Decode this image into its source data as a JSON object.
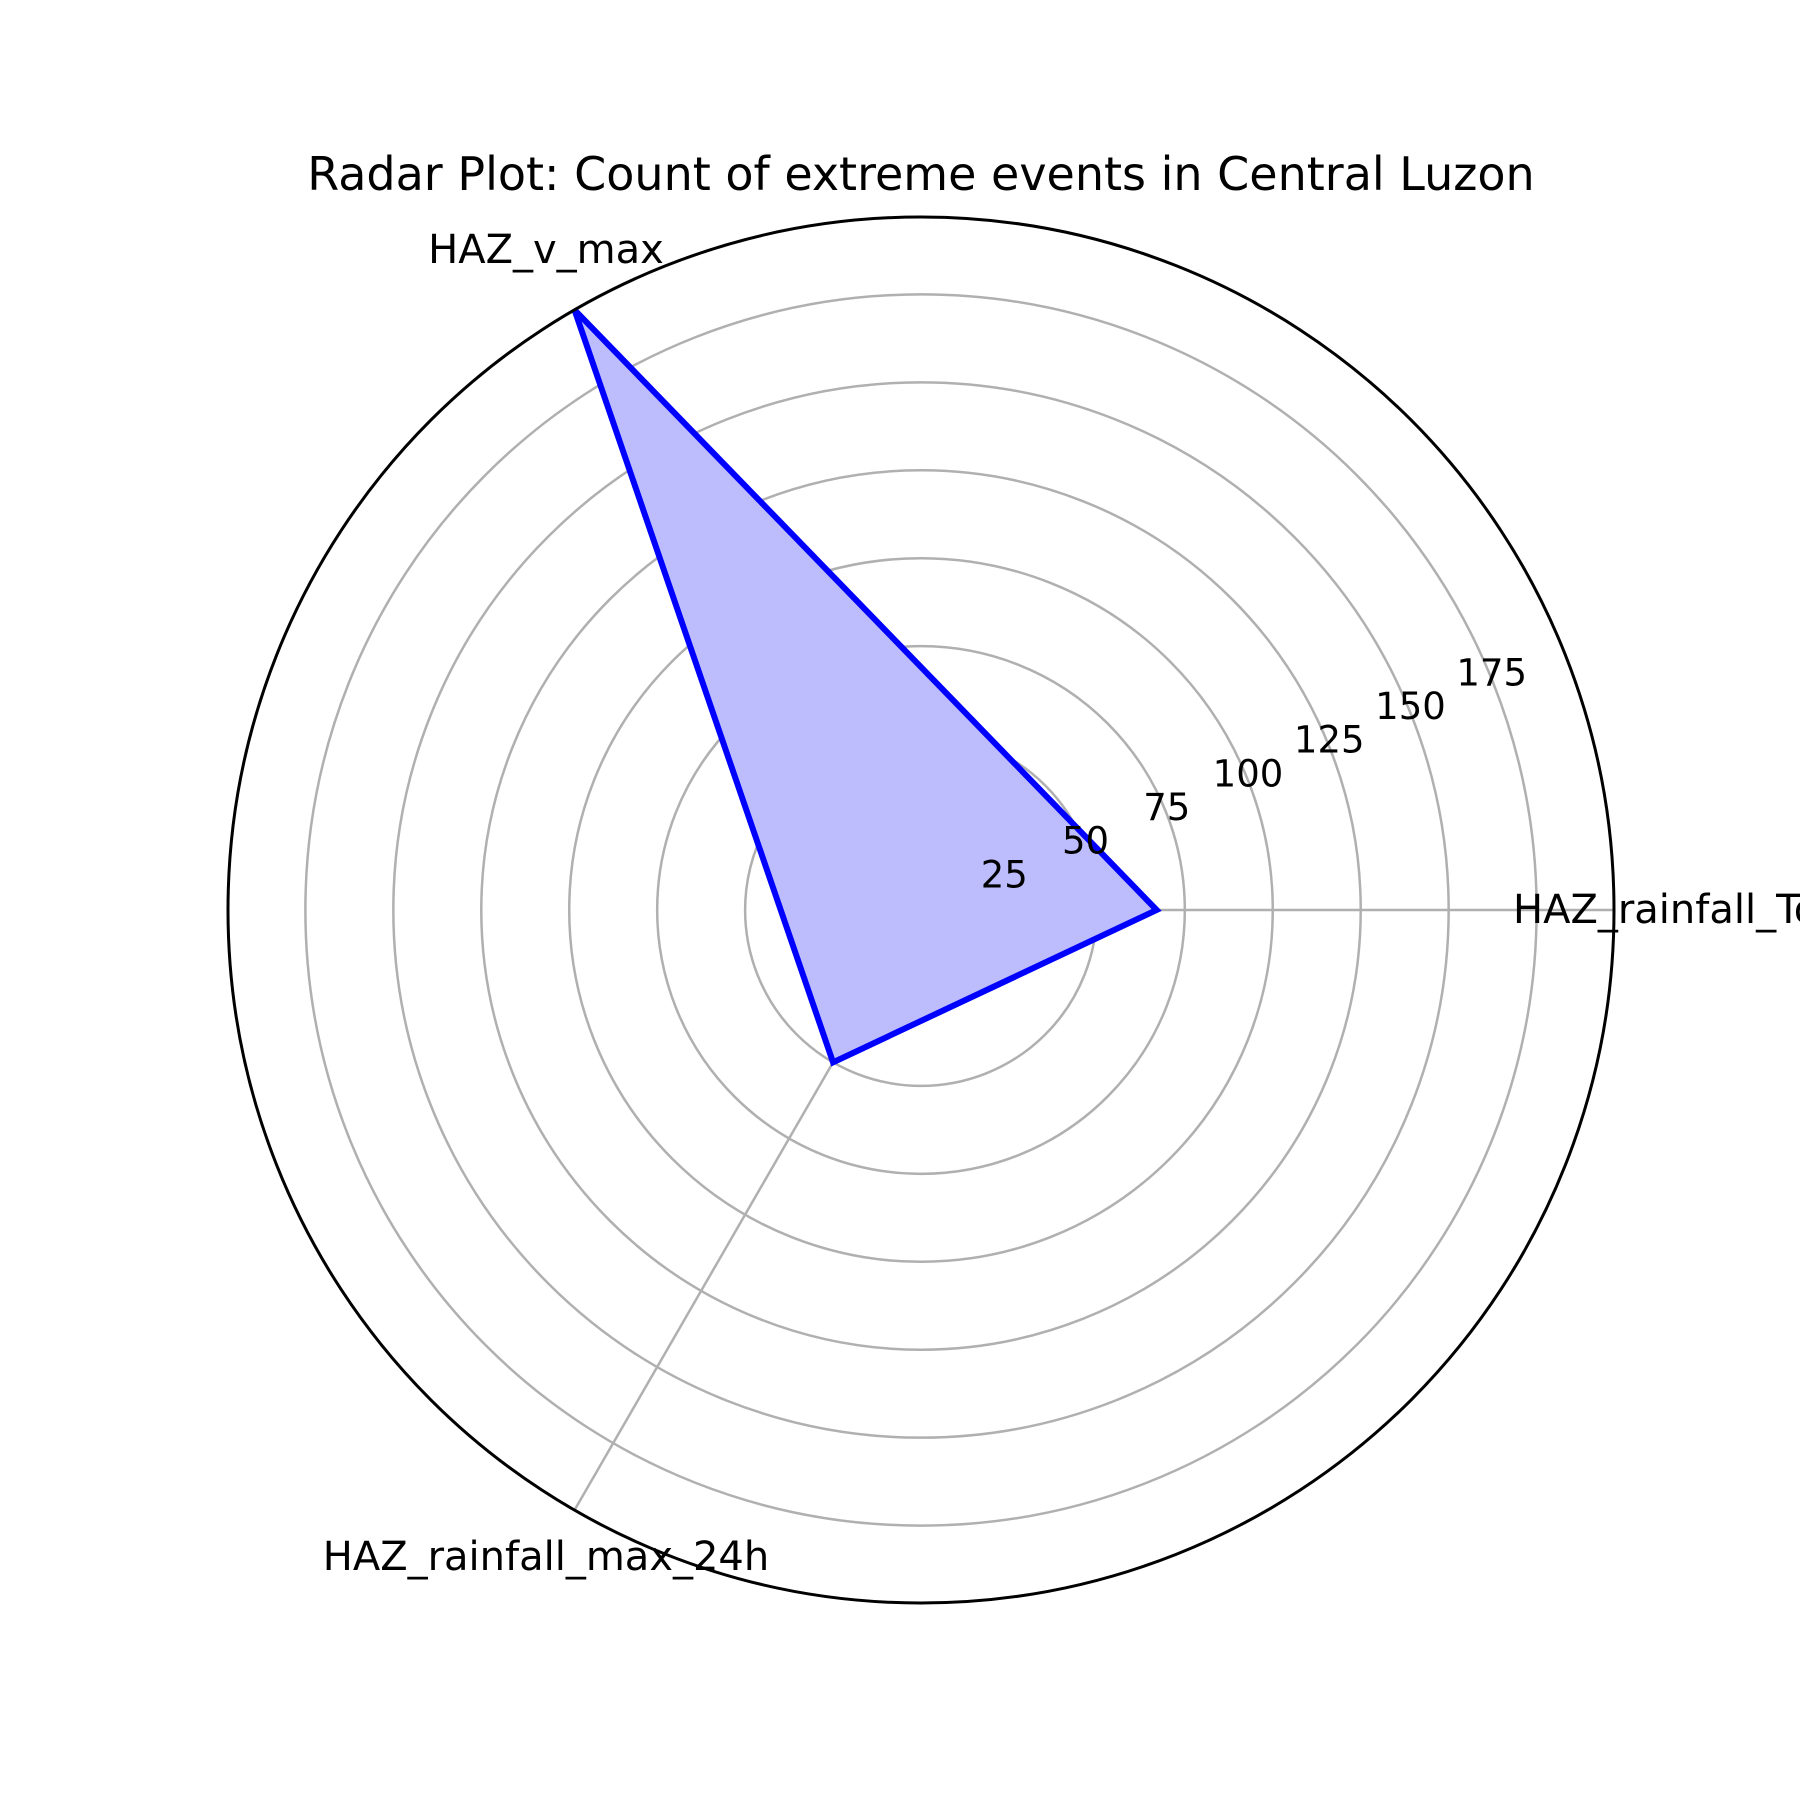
{
  "chart_data": {
    "type": "radar",
    "title": "Radar Plot: Count of extreme events in Central Luzon",
    "categories": [
      "HAZ_rainfall_Total",
      "HAZ_v_max",
      "HAZ_rainfall_max_24h"
    ],
    "series": [
      {
        "name": "Central Luzon",
        "values": [
          67,
          197,
          50
        ],
        "line_color": "#0000ff",
        "fill_color": "#bdbdfd"
      }
    ],
    "radial_ticks": [
      25,
      50,
      75,
      100,
      125,
      150,
      175
    ],
    "radial_tick_labels": [
      "25",
      "50",
      "75",
      "100",
      "125",
      "150",
      "175"
    ],
    "rlim": [
      0,
      197
    ],
    "grid": true,
    "grid_color": "#b0b0b0",
    "outline_color": "#000000"
  }
}
